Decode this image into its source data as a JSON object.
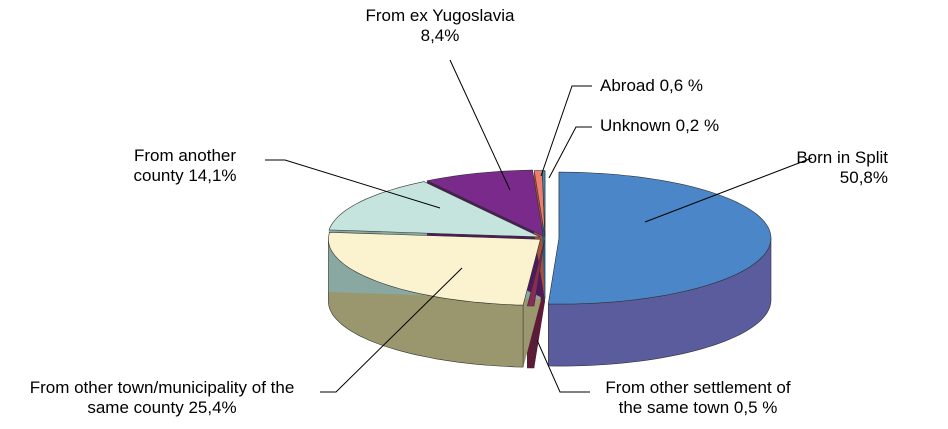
{
  "chart_data": {
    "type": "pie",
    "three_d": true,
    "categories": [
      "Born in Split",
      "From other settlement of the same town",
      "From other town/municipality of the same county",
      "From another county",
      "From ex Yugoslavia",
      "Abroad",
      "Unknown"
    ],
    "values": [
      50.8,
      0.5,
      25.4,
      14.1,
      8.4,
      0.6,
      0.2
    ],
    "value_labels": [
      "50,8%",
      "0,5 %",
      "25,4%",
      "14,1%",
      "8,4%",
      "0,6 %",
      "0,2 %"
    ],
    "colors": [
      "#4a86c8",
      "#8a2a55",
      "#fbf3cf",
      "#c6e4de",
      "#7a2a8a",
      "#f07c6c",
      "#3a8cb4"
    ],
    "side_colors": [
      "#5a5c9e",
      "#5e1a38",
      "#9a966e",
      "#8aa8a2",
      "#4e1a5a",
      "#a8503e",
      "#24607e"
    ]
  }
}
